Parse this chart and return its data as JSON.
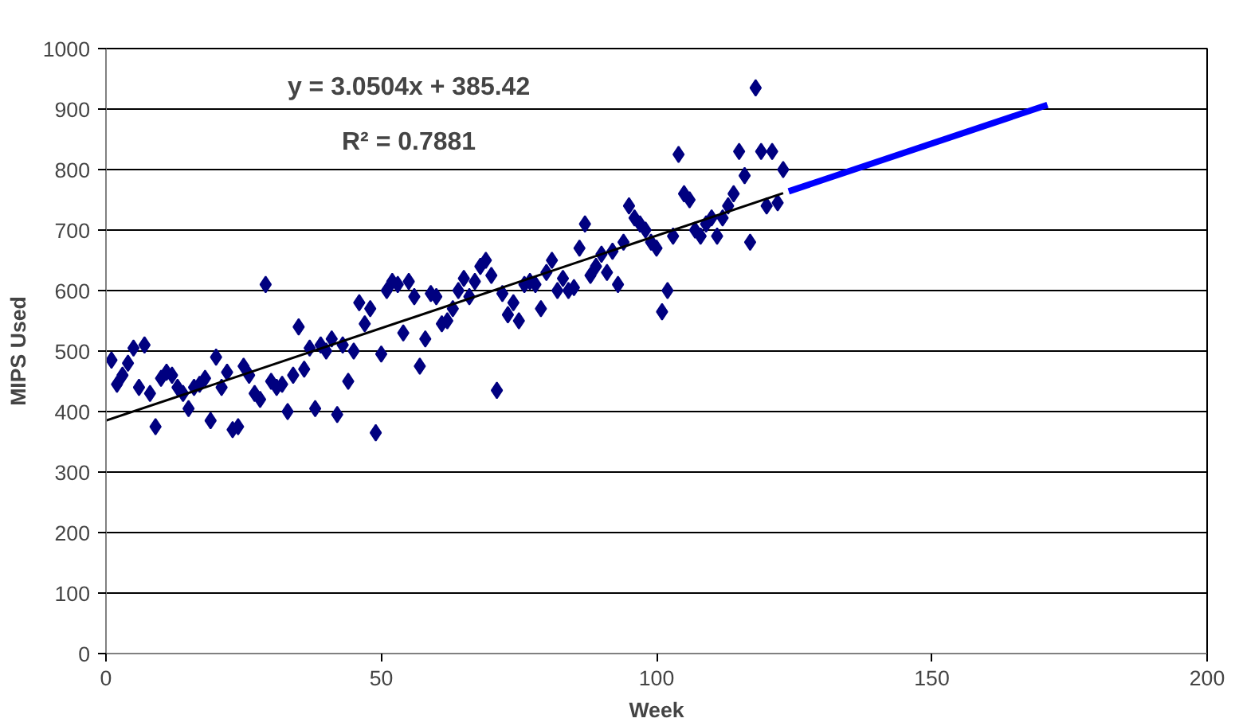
{
  "chart_data": {
    "type": "scatter",
    "xlabel": "Week",
    "ylabel": "MIPS Used",
    "xlim": [
      0,
      200
    ],
    "ylim": [
      0,
      1000
    ],
    "xticks": [
      0,
      50,
      100,
      150,
      200
    ],
    "yticks": [
      0,
      100,
      200,
      300,
      400,
      500,
      600,
      700,
      800,
      900,
      1000
    ],
    "grid": "y",
    "annotations": [
      "y = 3.0504x + 385.42",
      "R² = 0.7881"
    ],
    "series": [
      {
        "marker": "diamond",
        "color": "#000080",
        "x": [
          1,
          2,
          3,
          4,
          5,
          6,
          7,
          8,
          9,
          10,
          11,
          12,
          13,
          14,
          15,
          16,
          17,
          18,
          19,
          20,
          21,
          22,
          23,
          24,
          25,
          26,
          27,
          28,
          29,
          30,
          31,
          32,
          33,
          34,
          35,
          36,
          37,
          38,
          39,
          40,
          41,
          42,
          43,
          44,
          45,
          46,
          47,
          48,
          49,
          50,
          51,
          52,
          53,
          54,
          55,
          56,
          57,
          58,
          59,
          60,
          61,
          62,
          63,
          64,
          65,
          66,
          67,
          68,
          69,
          70,
          71,
          72,
          73,
          74,
          75,
          76,
          77,
          78,
          79,
          80,
          81,
          82,
          83,
          84,
          85,
          86,
          87,
          88,
          89,
          90,
          91,
          92,
          93,
          94,
          95,
          96,
          97,
          98,
          99,
          100,
          101,
          102,
          103,
          104,
          105,
          106,
          107,
          108,
          109,
          110,
          111,
          112,
          113,
          114,
          115,
          116,
          117,
          118,
          119,
          120,
          121,
          122,
          123
        ],
        "values": [
          485,
          445,
          460,
          480,
          505,
          440,
          510,
          430,
          375,
          455,
          465,
          460,
          440,
          430,
          405,
          440,
          445,
          455,
          385,
          490,
          440,
          465,
          370,
          375,
          475,
          460,
          430,
          420,
          610,
          450,
          440,
          445,
          400,
          460,
          540,
          470,
          505,
          405,
          510,
          500,
          520,
          395,
          510,
          450,
          500,
          580,
          545,
          570,
          365,
          495,
          600,
          615,
          610,
          530,
          615,
          590,
          475,
          520,
          595,
          590,
          545,
          550,
          570,
          600,
          620,
          590,
          615,
          640,
          650,
          625,
          435,
          595,
          560,
          580,
          550,
          610,
          615,
          610,
          570,
          630,
          650,
          600,
          620,
          600,
          605,
          670,
          710,
          625,
          640,
          660,
          630,
          665,
          610,
          680,
          740,
          720,
          710,
          700,
          680,
          670,
          565,
          600,
          690,
          825,
          760,
          750,
          700,
          690,
          710,
          720,
          690,
          720,
          740,
          760,
          830,
          790,
          680,
          935,
          830,
          740,
          830,
          745,
          800
        ]
      },
      {
        "type": "line",
        "marker": "none",
        "line_style": "solid",
        "color": "#000000",
        "x": [
          0,
          123
        ],
        "values": [
          385,
          761
        ]
      },
      {
        "type": "line",
        "marker": "none",
        "line_style": "solid",
        "color": "#0000ff",
        "x": [
          124,
          171
        ],
        "values": [
          764,
          907
        ]
      }
    ]
  }
}
